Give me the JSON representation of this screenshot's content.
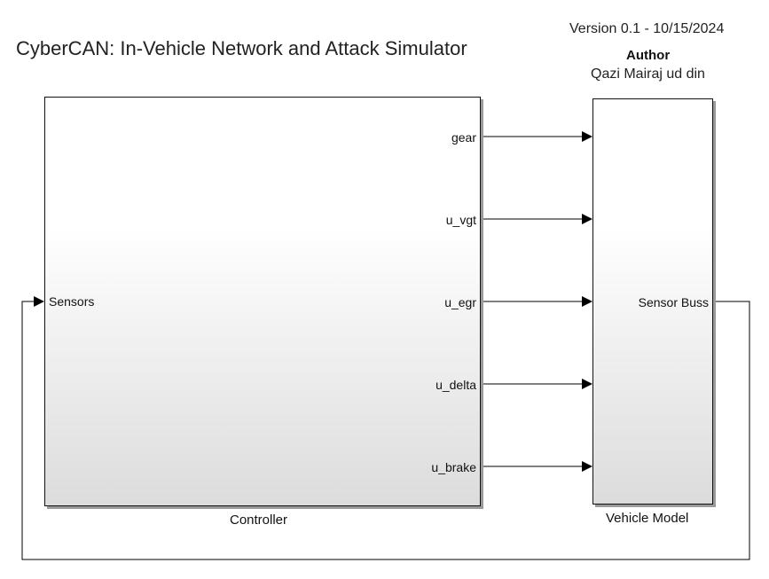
{
  "header": {
    "title": "CyberCAN: In-Vehicle Network and Attack Simulator",
    "version": "Version 0.1 - 10/15/2024",
    "author_label": "Author",
    "author_name": "Qazi Mairaj ud din"
  },
  "blocks": {
    "controller": {
      "name": "Controller",
      "inputs": [
        "Sensors"
      ],
      "outputs": [
        "gear",
        "u_vgt",
        "u_egr",
        "u_delta",
        "u_brake"
      ]
    },
    "vehicle_model": {
      "name": "Vehicle Model",
      "outputs": [
        "Sensor Buss"
      ]
    }
  }
}
